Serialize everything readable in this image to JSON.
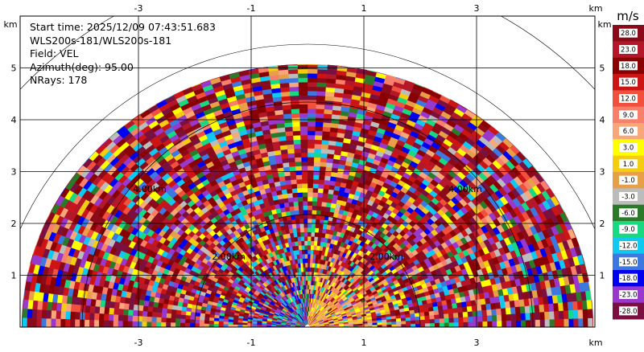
{
  "info": {
    "start_time": "Start time: 2025/12/09 07:43:51.683",
    "station": "WLS200s-181/WLS200s-181",
    "field": "Field: VEL",
    "azimuth": "Azimuth(deg): 95.00",
    "nrays": "NRays: 178"
  },
  "colorbar": {
    "unit": "m/s",
    "labels": [
      "28.0",
      "23.0",
      "18.0",
      "15.0",
      "12.0",
      "9.0",
      "6.0",
      "3.0",
      "1.0",
      "-1.0",
      "-3.0",
      "-6.0",
      "-9.0",
      "-12.0",
      "-15.0",
      "-18.0",
      "-23.0",
      "-28.0"
    ],
    "colors": [
      "#8b0a1a",
      "#b5172a",
      "#880000",
      "#cc1414",
      "#f0503c",
      "#f8806a",
      "#f8a878",
      "#ffff00",
      "#f4cc10",
      "#e8a048",
      "#bcbcbc",
      "#2a7a2a",
      "#18d882",
      "#10c8f0",
      "#3c78e0",
      "#0000f0",
      "#9838cc",
      "#7a1040"
    ]
  },
  "chart_data": {
    "type": "heatmap",
    "field": "VEL",
    "units": "m/s",
    "azimuth_deg": 95.0,
    "n_rays": 178,
    "x_ticks": [
      "-3",
      "-1",
      "1",
      "3"
    ],
    "y_ticks": [
      "1",
      "2",
      "3",
      "4",
      "5"
    ],
    "x_unit": "km",
    "y_unit": "km",
    "xlim": [
      -5.7,
      5.7
    ],
    "ylim": [
      0,
      6.0
    ],
    "max_range_km": 5.07,
    "range_rings": [
      {
        "label": "2.00km",
        "r": 2.0
      },
      {
        "label": "4.00km",
        "r": 4.0
      }
    ],
    "grid": true,
    "value_range": [
      -28.0,
      28.0
    ]
  }
}
